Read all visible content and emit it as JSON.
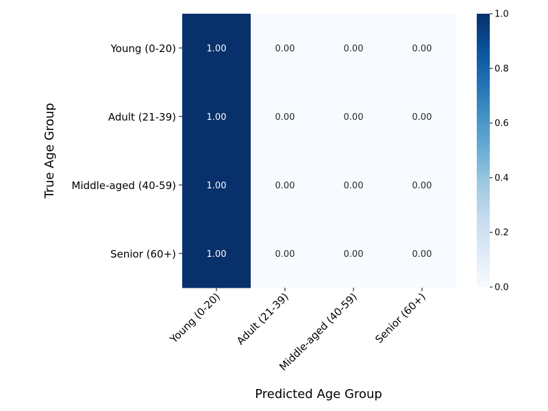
{
  "chart_data": {
    "type": "heatmap",
    "title": "",
    "xlabel": "Predicted Age Group",
    "ylabel": "True Age Group",
    "x_categories": [
      "Young (0-20)",
      "Adult (21-39)",
      "Middle-aged (40-59)",
      "Senior (60+)"
    ],
    "y_categories": [
      "Young (0-20)",
      "Adult (21-39)",
      "Middle-aged (40-59)",
      "Senior (60+)"
    ],
    "values": [
      [
        1.0,
        0.0,
        0.0,
        0.0
      ],
      [
        1.0,
        0.0,
        0.0,
        0.0
      ],
      [
        1.0,
        0.0,
        0.0,
        0.0
      ],
      [
        1.0,
        0.0,
        0.0,
        0.0
      ]
    ],
    "annotation_format": "2f",
    "colormap": "Blues",
    "colorbar": {
      "vmin": 0.0,
      "vmax": 1.0,
      "ticks": [
        0.0,
        0.2,
        0.4,
        0.6,
        0.8,
        1.0
      ],
      "tick_labels": [
        "0.0",
        "0.2",
        "0.4",
        "0.6",
        "0.8",
        "1.0"
      ]
    },
    "colors": {
      "low": "#f7fbff",
      "high": "#08306b",
      "annotation_dark_bg": "#ffffff",
      "annotation_light_bg": "#262626"
    }
  }
}
